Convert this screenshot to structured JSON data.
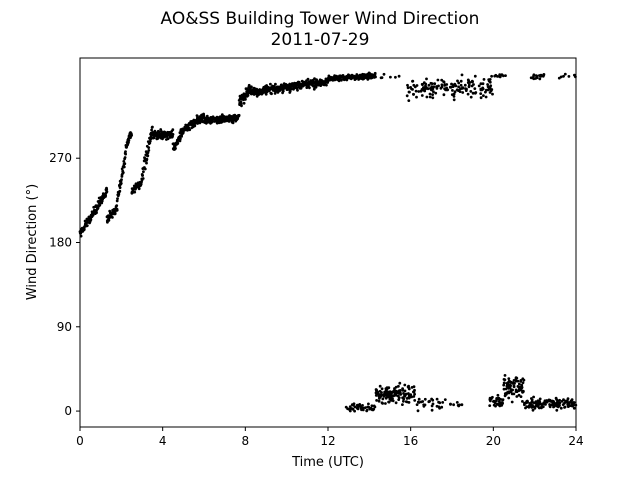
{
  "chart_data": {
    "type": "scatter",
    "title": "AO&SS Building Tower Wind Direction",
    "subtitle": "2011-07-29",
    "xlabel": "Time (UTC)",
    "ylabel": "Wind Direction (°)",
    "xlim": [
      0,
      24
    ],
    "ylim": [
      -17,
      377
    ],
    "xticks": [
      0,
      4,
      8,
      12,
      16,
      20,
      24
    ],
    "yticks": [
      0,
      90,
      180,
      270
    ],
    "grid": false,
    "legend": "none",
    "marker_color": "#000000",
    "series": [
      {
        "segments": [
          {
            "x0": 0.0,
            "x1": 1.3,
            "y0": 190,
            "y1": 235,
            "spread": 7
          },
          {
            "x0": 1.3,
            "x1": 1.8,
            "y0": 205,
            "y1": 215,
            "spread": 7
          },
          {
            "x0": 1.8,
            "x1": 2.2,
            "y0": 225,
            "y1": 275,
            "spread": 10
          },
          {
            "x0": 2.2,
            "x1": 2.5,
            "y0": 280,
            "y1": 300,
            "spread": 8
          },
          {
            "x0": 2.5,
            "x1": 3.0,
            "y0": 235,
            "y1": 245,
            "spread": 6
          },
          {
            "x0": 3.0,
            "x1": 3.5,
            "y0": 250,
            "y1": 300,
            "spread": 10
          },
          {
            "x0": 3.5,
            "x1": 4.5,
            "y0": 295,
            "y1": 295,
            "spread": 7
          },
          {
            "x0": 4.5,
            "x1": 5.0,
            "y0": 280,
            "y1": 300,
            "spread": 8
          },
          {
            "x0": 5.0,
            "x1": 6.0,
            "y0": 300,
            "y1": 315,
            "spread": 6
          },
          {
            "x0": 6.0,
            "x1": 7.7,
            "y0": 310,
            "y1": 313,
            "spread": 6
          },
          {
            "x0": 7.7,
            "x1": 8.3,
            "y0": 330,
            "y1": 345,
            "spread": 9
          },
          {
            "x0": 8.3,
            "x1": 12.0,
            "y0": 340,
            "y1": 352,
            "spread": 7
          },
          {
            "x0": 12.0,
            "x1": 14.3,
            "y0": 355,
            "y1": 358,
            "spread": 4
          }
        ],
        "high_scatter": [
          {
            "x0": 14.3,
            "x1": 15.5,
            "center": 357,
            "spread": 3,
            "n": 6
          },
          {
            "x0": 15.8,
            "x1": 20.0,
            "center": 345,
            "spread": 16,
            "n": 160
          },
          {
            "x0": 20.0,
            "x1": 20.6,
            "center": 358,
            "spread": 3,
            "n": 12
          },
          {
            "x0": 21.8,
            "x1": 22.5,
            "center": 357,
            "spread": 4,
            "n": 20
          },
          {
            "x0": 23.0,
            "x1": 24.0,
            "center": 358,
            "spread": 3,
            "n": 8
          }
        ],
        "low_scatter": [
          {
            "x0": 12.8,
            "x1": 14.3,
            "center": 4,
            "spread": 6,
            "n": 45
          },
          {
            "x0": 14.3,
            "x1": 16.2,
            "center": 18,
            "spread": 14,
            "n": 130
          },
          {
            "x0": 16.2,
            "x1": 18.5,
            "center": 8,
            "spread": 10,
            "n": 35
          },
          {
            "x0": 19.8,
            "x1": 20.5,
            "center": 10,
            "spread": 10,
            "n": 35
          },
          {
            "x0": 20.5,
            "x1": 21.5,
            "center": 25,
            "spread": 18,
            "n": 80
          },
          {
            "x0": 21.5,
            "x1": 24.0,
            "center": 8,
            "spread": 8,
            "n": 140
          }
        ]
      }
    ]
  }
}
